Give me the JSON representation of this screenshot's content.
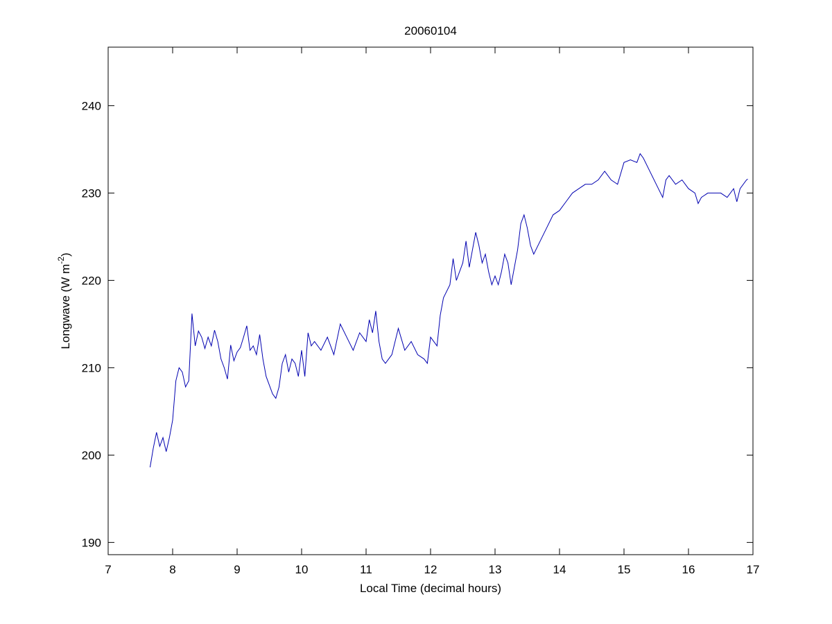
{
  "chart_data": {
    "type": "line",
    "title": "20060104",
    "xlabel": "Local Time (decimal hours)",
    "ylabel": [
      "Longwave (W m",
      "-2",
      ")"
    ],
    "xlim": [
      7,
      17
    ],
    "xticks": [
      7,
      8,
      9,
      10,
      11,
      12,
      13,
      14,
      15,
      16,
      17
    ],
    "ylim": [
      188.6,
      246.7
    ],
    "yticks": [
      190,
      200,
      210,
      220,
      230,
      240
    ],
    "grid": false,
    "series": [
      {
        "color": "#0000b0",
        "x": [
          7.65,
          7.7,
          7.75,
          7.8,
          7.85,
          7.9,
          7.95,
          8.0,
          8.05,
          8.1,
          8.15,
          8.2,
          8.25,
          8.3,
          8.35,
          8.4,
          8.45,
          8.5,
          8.55,
          8.6,
          8.65,
          8.7,
          8.75,
          8.8,
          8.85,
          8.9,
          8.95,
          9.0,
          9.05,
          9.1,
          9.15,
          9.2,
          9.25,
          9.3,
          9.35,
          9.4,
          9.45,
          9.5,
          9.55,
          9.6,
          9.65,
          9.7,
          9.75,
          9.8,
          9.85,
          9.9,
          9.95,
          10.0,
          10.05,
          10.1,
          10.15,
          10.2,
          10.3,
          10.4,
          10.5,
          10.6,
          10.7,
          10.8,
          10.9,
          11.0,
          11.05,
          11.1,
          11.15,
          11.2,
          11.25,
          11.3,
          11.4,
          11.5,
          11.6,
          11.7,
          11.8,
          11.9,
          11.95,
          12.0,
          12.05,
          12.1,
          12.15,
          12.2,
          12.3,
          12.35,
          12.4,
          12.5,
          12.55,
          12.6,
          12.7,
          12.75,
          12.8,
          12.85,
          12.9,
          12.95,
          13.0,
          13.05,
          13.1,
          13.15,
          13.2,
          13.25,
          13.3,
          13.35,
          13.4,
          13.45,
          13.5,
          13.55,
          13.6,
          13.7,
          13.8,
          13.9,
          14.0,
          14.1,
          14.2,
          14.3,
          14.4,
          14.5,
          14.6,
          14.7,
          14.8,
          14.9,
          15.0,
          15.1,
          15.2,
          15.25,
          15.3,
          15.4,
          15.5,
          15.6,
          15.65,
          15.7,
          15.8,
          15.9,
          16.0,
          16.1,
          16.15,
          16.2,
          16.3,
          16.4,
          16.5,
          16.6,
          16.7,
          16.75,
          16.8,
          16.9,
          16.92
        ],
        "values": [
          198.6,
          200.8,
          202.6,
          201.0,
          202.0,
          200.4,
          202.0,
          204.0,
          208.5,
          210.0,
          209.5,
          207.8,
          208.5,
          216.2,
          212.5,
          214.2,
          213.5,
          212.2,
          213.5,
          212.5,
          214.3,
          213.0,
          211.0,
          210.0,
          208.7,
          212.6,
          210.8,
          211.8,
          212.3,
          213.5,
          214.8,
          212.0,
          212.5,
          211.5,
          213.8,
          211.0,
          209.0,
          208.0,
          207.0,
          206.5,
          207.8,
          210.5,
          211.5,
          209.5,
          211.0,
          210.5,
          209.0,
          212.0,
          209.0,
          214.0,
          212.5,
          213.0,
          212.0,
          213.5,
          211.5,
          215.0,
          213.5,
          212.0,
          214.0,
          213.0,
          215.5,
          214.0,
          216.5,
          213.0,
          211.0,
          210.5,
          211.5,
          214.5,
          212.0,
          213.0,
          211.5,
          211.0,
          210.5,
          213.5,
          213.0,
          212.5,
          216.0,
          218.0,
          219.5,
          222.5,
          220.0,
          222.0,
          224.5,
          221.5,
          225.5,
          224.0,
          222.0,
          223.0,
          221.0,
          219.5,
          220.5,
          219.5,
          221.0,
          223.0,
          222.0,
          219.5,
          221.5,
          223.5,
          226.5,
          227.5,
          226.0,
          224.0,
          223.0,
          224.5,
          226.0,
          227.5,
          228.0,
          229.0,
          230.0,
          230.5,
          231.0,
          231.0,
          231.5,
          232.5,
          231.5,
          231.0,
          233.5,
          233.8,
          233.5,
          234.5,
          234.0,
          232.5,
          231.0,
          229.5,
          231.5,
          232.0,
          231.0,
          231.5,
          230.5,
          230.0,
          228.8,
          229.5,
          230.0,
          230.0,
          230.0,
          229.5,
          230.5,
          229.0,
          230.5,
          231.5,
          231.6
        ]
      }
    ]
  }
}
